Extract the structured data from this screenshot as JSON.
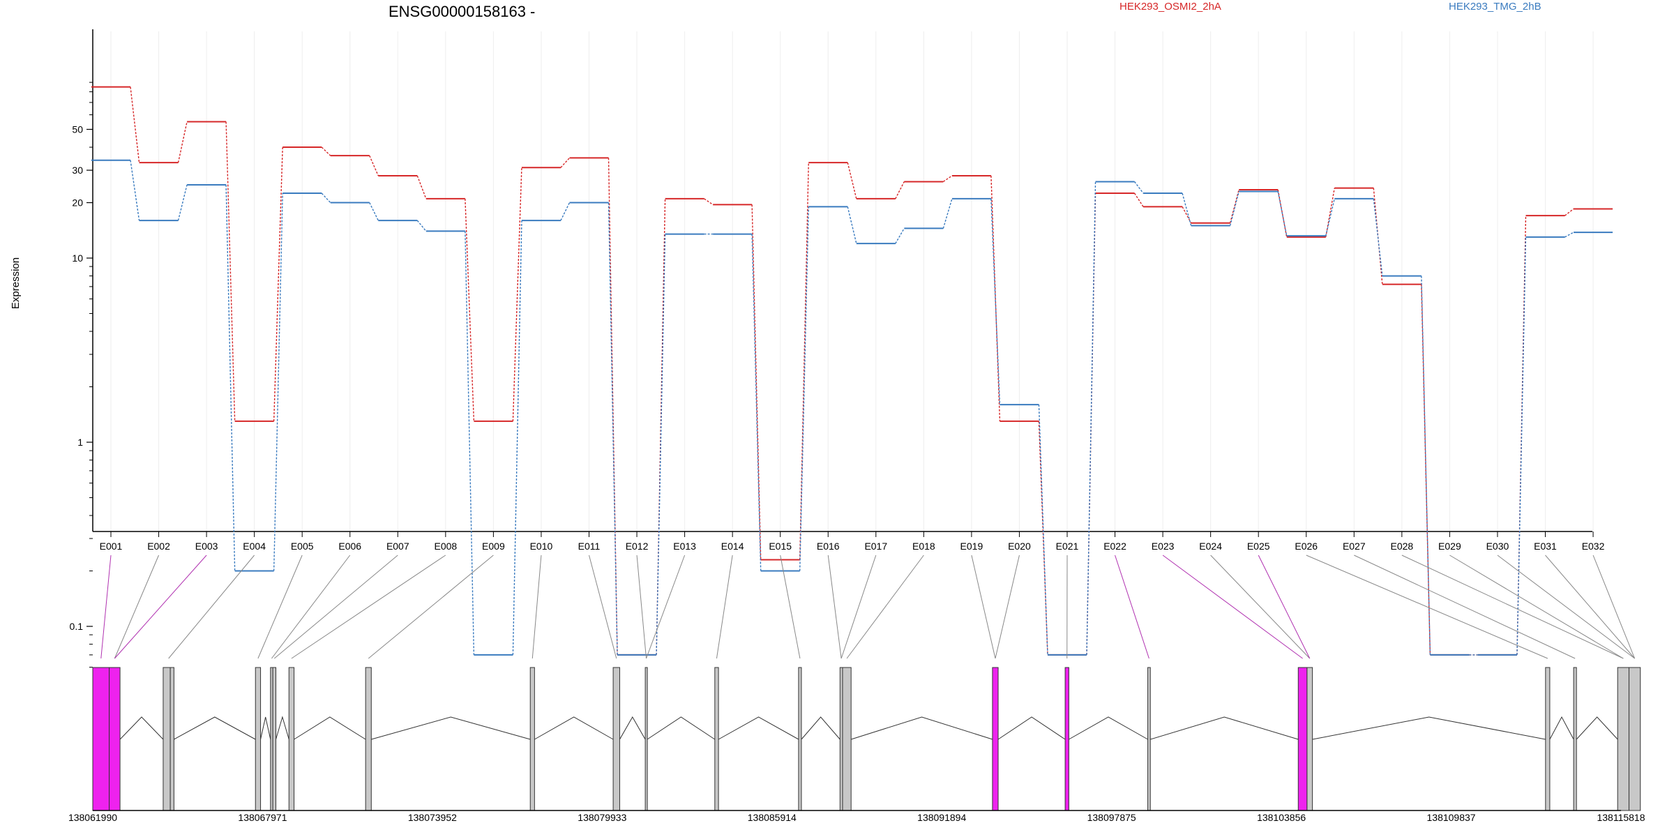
{
  "chart_data": {
    "type": "line",
    "title": "ENSG00000158163 -",
    "ylabel": "Expression",
    "yscale": "log",
    "ytick_labels": [
      "0.1",
      "1",
      "10",
      "20",
      "30",
      "50"
    ],
    "ytick_values": [
      0.1,
      1,
      10,
      20,
      30,
      50
    ],
    "grid": "vertical",
    "legend_position": "top",
    "categories": [
      "E001",
      "E002",
      "E003",
      "E004",
      "E005",
      "E006",
      "E007",
      "E008",
      "E009",
      "E010",
      "E011",
      "E012",
      "E013",
      "E014",
      "E015",
      "E016",
      "E017",
      "E018",
      "E019",
      "E020",
      "E021",
      "E022",
      "E023",
      "E024",
      "E025",
      "E026",
      "E027",
      "E028",
      "E029",
      "E030",
      "E031",
      "E032"
    ],
    "series": [
      {
        "name": "HEK293_OSMI2_2hA",
        "color": "#d62728",
        "values": [
          85,
          33,
          55,
          1.3,
          40,
          36,
          28,
          21,
          1.3,
          31,
          35,
          0.07,
          21,
          19.5,
          0.23,
          33,
          21,
          26,
          28,
          1.3,
          0.07,
          22.5,
          19,
          15.5,
          23.5,
          13,
          24,
          7.2,
          0.07,
          0.07,
          17,
          18.5
        ]
      },
      {
        "name": "HEK293_TMG_2hB",
        "color": "#3a7bbf",
        "values": [
          34,
          16,
          25,
          0.2,
          22.5,
          20,
          16,
          14,
          0.07,
          16,
          20,
          0.07,
          13.5,
          13.5,
          0.2,
          19,
          12,
          14.5,
          21,
          1.6,
          0.07,
          26,
          22.5,
          15,
          23,
          13.2,
          21,
          8,
          0.07,
          0.07,
          13,
          13.8
        ]
      }
    ],
    "gene_model": {
      "coordinate_labels": [
        "138061990",
        "138067971",
        "138073952",
        "138079933",
        "138085914",
        "138091894",
        "138097875",
        "138103856",
        "138109837",
        "138115818"
      ],
      "coordinate_values": [
        138061990,
        138067971,
        138073952,
        138079933,
        138085914,
        138091894,
        138097875,
        138103856,
        138109837,
        138115818
      ],
      "exon_fill": "#c8c8c8",
      "highlight_fill": "#ee22ee",
      "exons": [
        {
          "start": 138061990,
          "end": 138062570,
          "highlight": true,
          "feature": 1
        },
        {
          "start": 138062570,
          "end": 138062950,
          "highlight": true,
          "feature": 2
        },
        {
          "start": 138064470,
          "end": 138064720,
          "highlight": false,
          "feature": 3
        },
        {
          "start": 138064720,
          "end": 138064850,
          "highlight": false,
          "feature": 3
        },
        {
          "start": 138067720,
          "end": 138067900,
          "highlight": false,
          "feature": 4
        },
        {
          "start": 138068250,
          "end": 138068330,
          "highlight": false,
          "feature": 5
        },
        {
          "start": 138068330,
          "end": 138068440,
          "highlight": false,
          "feature": 6
        },
        {
          "start": 138068900,
          "end": 138069080,
          "highlight": false,
          "feature": 7
        },
        {
          "start": 138071600,
          "end": 138071800,
          "highlight": false,
          "feature": 8
        },
        {
          "start": 138077400,
          "end": 138077550,
          "highlight": false,
          "feature": 9
        },
        {
          "start": 138080320,
          "end": 138080550,
          "highlight": false,
          "feature": 10
        },
        {
          "start": 138081450,
          "end": 138081520,
          "highlight": false,
          "feature": 11
        },
        {
          "start": 138083900,
          "end": 138084030,
          "highlight": false,
          "feature": 12
        },
        {
          "start": 138086850,
          "end": 138086950,
          "highlight": false,
          "feature": 13
        },
        {
          "start": 138088310,
          "end": 138088400,
          "highlight": false,
          "feature": 14
        },
        {
          "start": 138088400,
          "end": 138088700,
          "highlight": false,
          "feature": 15
        },
        {
          "start": 138093680,
          "end": 138093880,
          "highlight": true,
          "feature": 16
        },
        {
          "start": 138096240,
          "end": 138096370,
          "highlight": true,
          "feature": 17
        },
        {
          "start": 138099150,
          "end": 138099240,
          "highlight": false,
          "feature": 18
        },
        {
          "start": 138104450,
          "end": 138104760,
          "highlight": true,
          "feature": 19
        },
        {
          "start": 138104760,
          "end": 138104950,
          "highlight": false,
          "feature": 20
        },
        {
          "start": 138113160,
          "end": 138113310,
          "highlight": false,
          "feature": 21
        },
        {
          "start": 138114150,
          "end": 138114250,
          "highlight": false,
          "feature": 22
        },
        {
          "start": 138115700,
          "end": 138116100,
          "highlight": false,
          "feature": 23
        },
        {
          "start": 138116100,
          "end": 138116500,
          "highlight": false,
          "feature": 24
        }
      ],
      "exon_feature_map": [
        1,
        2,
        2,
        3,
        4,
        5,
        6,
        7,
        8,
        9,
        10,
        11,
        11,
        12,
        13,
        14,
        14,
        15,
        16,
        16,
        17,
        18,
        19,
        20,
        20,
        21,
        22,
        23,
        23,
        24,
        24,
        24
      ],
      "highlighted_series_exons": [
        "E001",
        "E003",
        "E022",
        "E023",
        "E025"
      ]
    }
  }
}
